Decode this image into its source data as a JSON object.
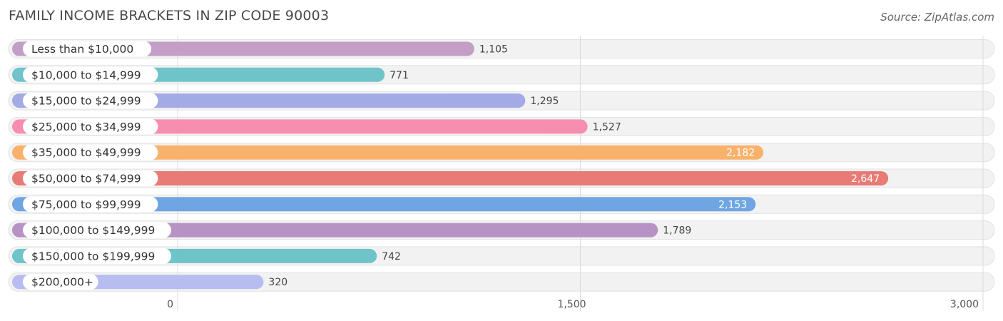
{
  "header": {
    "title": "FAMILY INCOME BRACKETS IN ZIP CODE 90003",
    "source": "Source: ZipAtlas.com"
  },
  "chart_data": {
    "type": "bar",
    "orientation": "horizontal",
    "title": "FAMILY INCOME BRACKETS IN ZIP CODE 90003",
    "categories": [
      "Less than $10,000",
      "$10,000 to $14,999",
      "$15,000 to $24,999",
      "$25,000 to $34,999",
      "$35,000 to $49,999",
      "$50,000 to $74,999",
      "$75,000 to $99,999",
      "$100,000 to $149,999",
      "$150,000 to $199,999",
      "$200,000+"
    ],
    "values": [
      1105,
      771,
      1295,
      1527,
      2182,
      2647,
      2153,
      1789,
      742,
      320
    ],
    "value_labels": [
      "1,105",
      "771",
      "1,295",
      "1,527",
      "2,182",
      "2,647",
      "2,153",
      "1,789",
      "742",
      "320"
    ],
    "colors": [
      "#c39fc7",
      "#6ec4c9",
      "#a3aae6",
      "#f78daf",
      "#f9b26c",
      "#e87b76",
      "#6fa5e2",
      "#b693c4",
      "#6ec4c9",
      "#b7bdf0"
    ],
    "xlim": [
      0,
      3000
    ],
    "xticks": [
      0,
      1500,
      3000
    ],
    "xtick_labels": [
      "0",
      "1,500",
      "3,000"
    ],
    "grid": true
  }
}
